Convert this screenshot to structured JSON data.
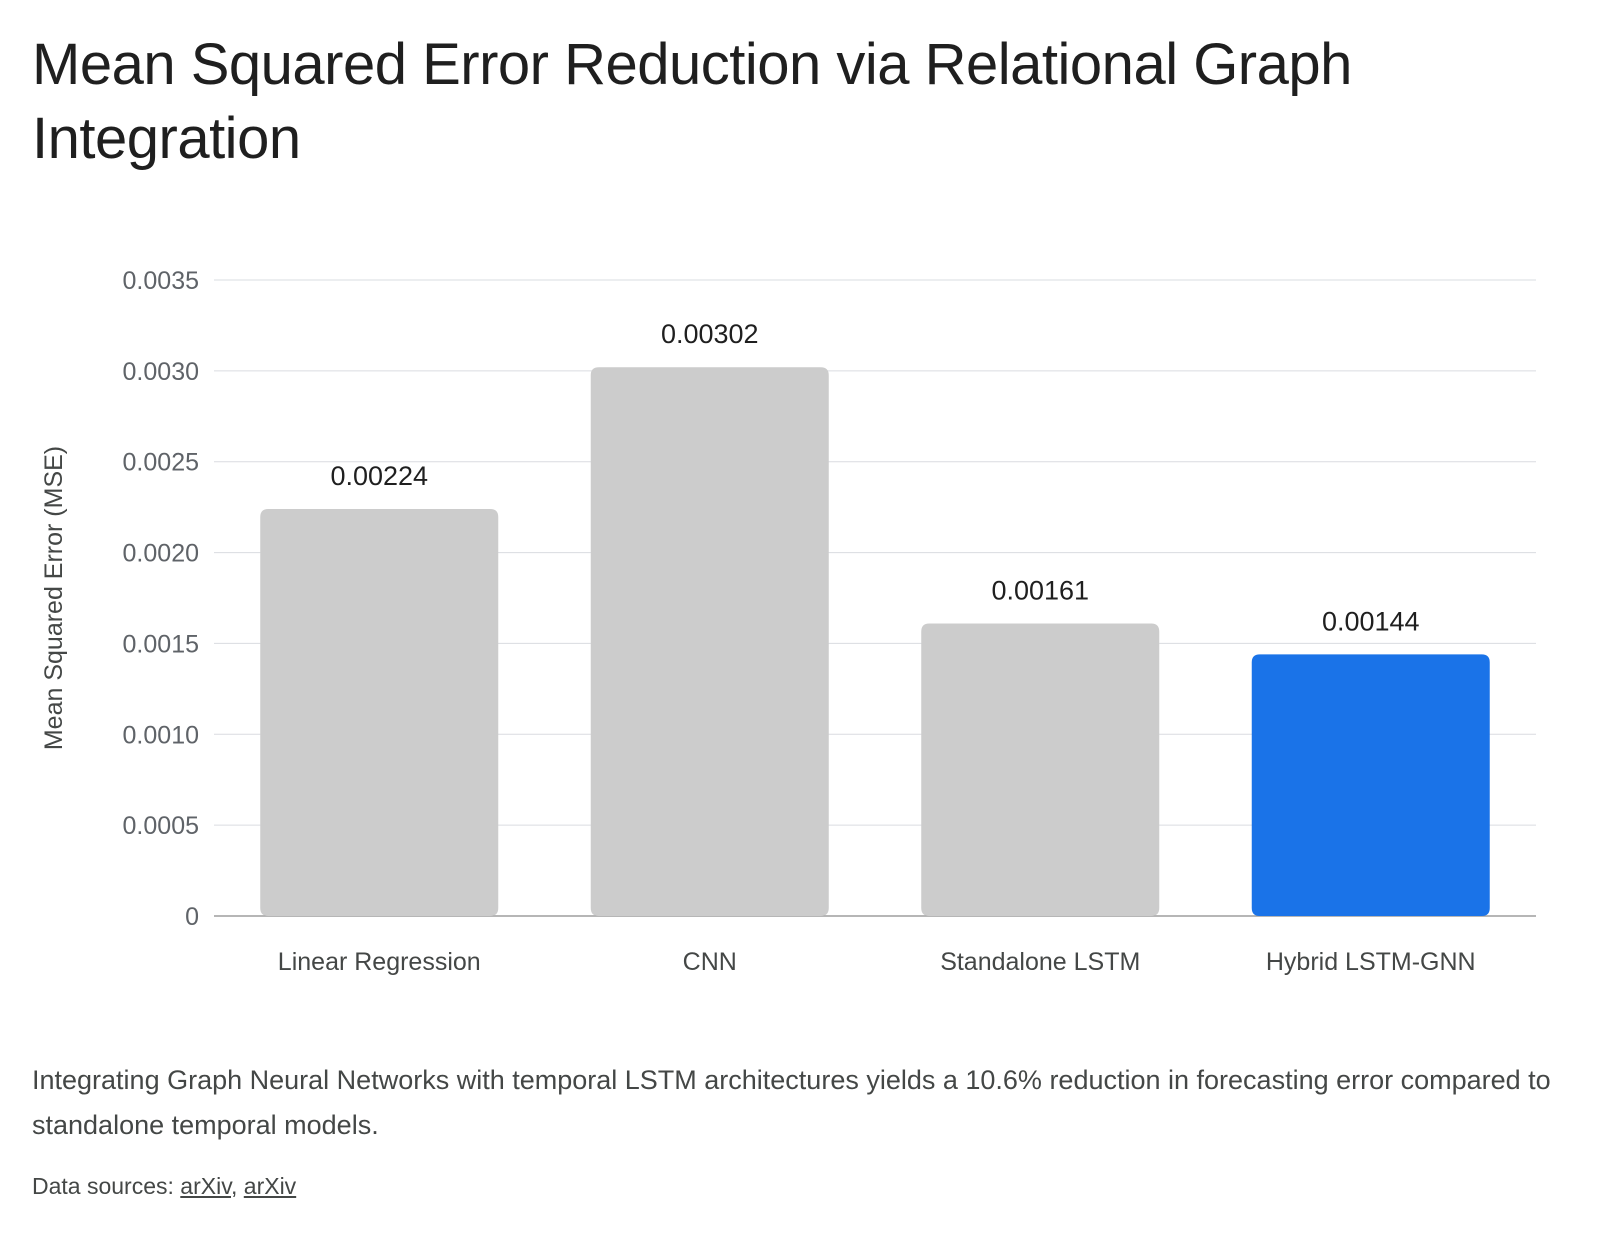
{
  "chart_data": {
    "type": "bar",
    "title": "Mean Squared Error Reduction via Relational Graph Integration",
    "ylabel": "Mean Squared Error (MSE)",
    "xlabel": "",
    "categories": [
      "Linear Regression",
      "CNN",
      "Standalone LSTM",
      "Hybrid LSTM-GNN"
    ],
    "values": [
      0.00224,
      0.00302,
      0.00161,
      0.00144
    ],
    "value_labels": [
      "0.00224",
      "0.00302",
      "0.00161",
      "0.00144"
    ],
    "ylim": [
      0,
      0.0035
    ],
    "yticks": [
      0,
      0.0005,
      0.001,
      0.0015,
      0.002,
      0.0025,
      0.003,
      0.0035
    ],
    "ytick_labels": [
      "0",
      "0.0005",
      "0.0010",
      "0.0015",
      "0.0020",
      "0.0025",
      "0.0030",
      "0.0035"
    ],
    "grid": true,
    "colors": {
      "default": "#cccccc",
      "highlight": "#1a73e8"
    },
    "highlight_index": 3
  },
  "caption": "Integrating Graph Neural Networks with temporal LSTM architectures yields a 10.6% reduction in forecasting error compared to standalone temporal models.",
  "sources": {
    "prefix": "Data sources: ",
    "links": [
      "arXiv",
      "arXiv"
    ],
    "separator": ", "
  }
}
